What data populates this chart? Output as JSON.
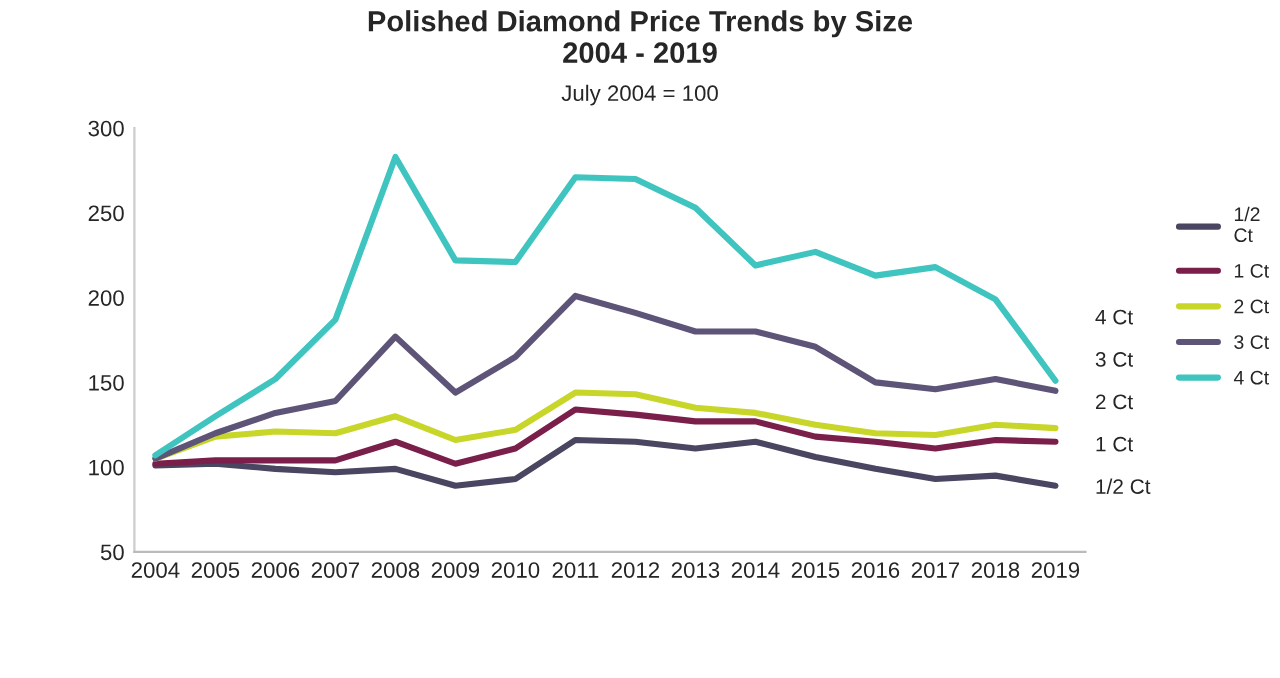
{
  "chart_data": {
    "type": "line",
    "title": "Polished Diamond Price Trends by Size\n2004 - 2019",
    "subtitle": "July 2004 = 100",
    "categories": [
      "2004",
      "2005",
      "2006",
      "2007",
      "2008",
      "2009",
      "2010",
      "2011",
      "2012",
      "2013",
      "2014",
      "2015",
      "2016",
      "2017",
      "2018",
      "2019"
    ],
    "ylim": [
      50,
      300
    ],
    "yticks": [
      50,
      100,
      150,
      200,
      250,
      300
    ],
    "grid": false,
    "legend": "right",
    "marker": "none",
    "line_style": "solid",
    "series": [
      {
        "name": "1/2 Ct",
        "color": "#4a4560",
        "values": [
          101,
          102,
          99,
          97,
          99,
          89,
          93,
          116,
          115,
          111,
          115,
          106,
          99,
          93,
          95,
          89
        ]
      },
      {
        "name": "1 Ct",
        "color": "#7a1f4a",
        "values": [
          102,
          104,
          104,
          104,
          115,
          102,
          111,
          134,
          131,
          127,
          127,
          118,
          115,
          111,
          116,
          115
        ]
      },
      {
        "name": "2 Ct",
        "color": "#c8d62a",
        "values": [
          105,
          118,
          121,
          120,
          130,
          116,
          122,
          144,
          143,
          135,
          132,
          125,
          120,
          119,
          125,
          123
        ]
      },
      {
        "name": "3 Ct",
        "color": "#5d5478",
        "values": [
          105,
          120,
          132,
          139,
          177,
          144,
          165,
          201,
          191,
          180,
          180,
          171,
          150,
          146,
          152,
          145
        ]
      },
      {
        "name": "4 Ct",
        "color": "#3fc4c0",
        "values": [
          107,
          130,
          152,
          187,
          283,
          222,
          221,
          271,
          270,
          253,
          219,
          227,
          213,
          218,
          199,
          151
        ]
      }
    ]
  }
}
